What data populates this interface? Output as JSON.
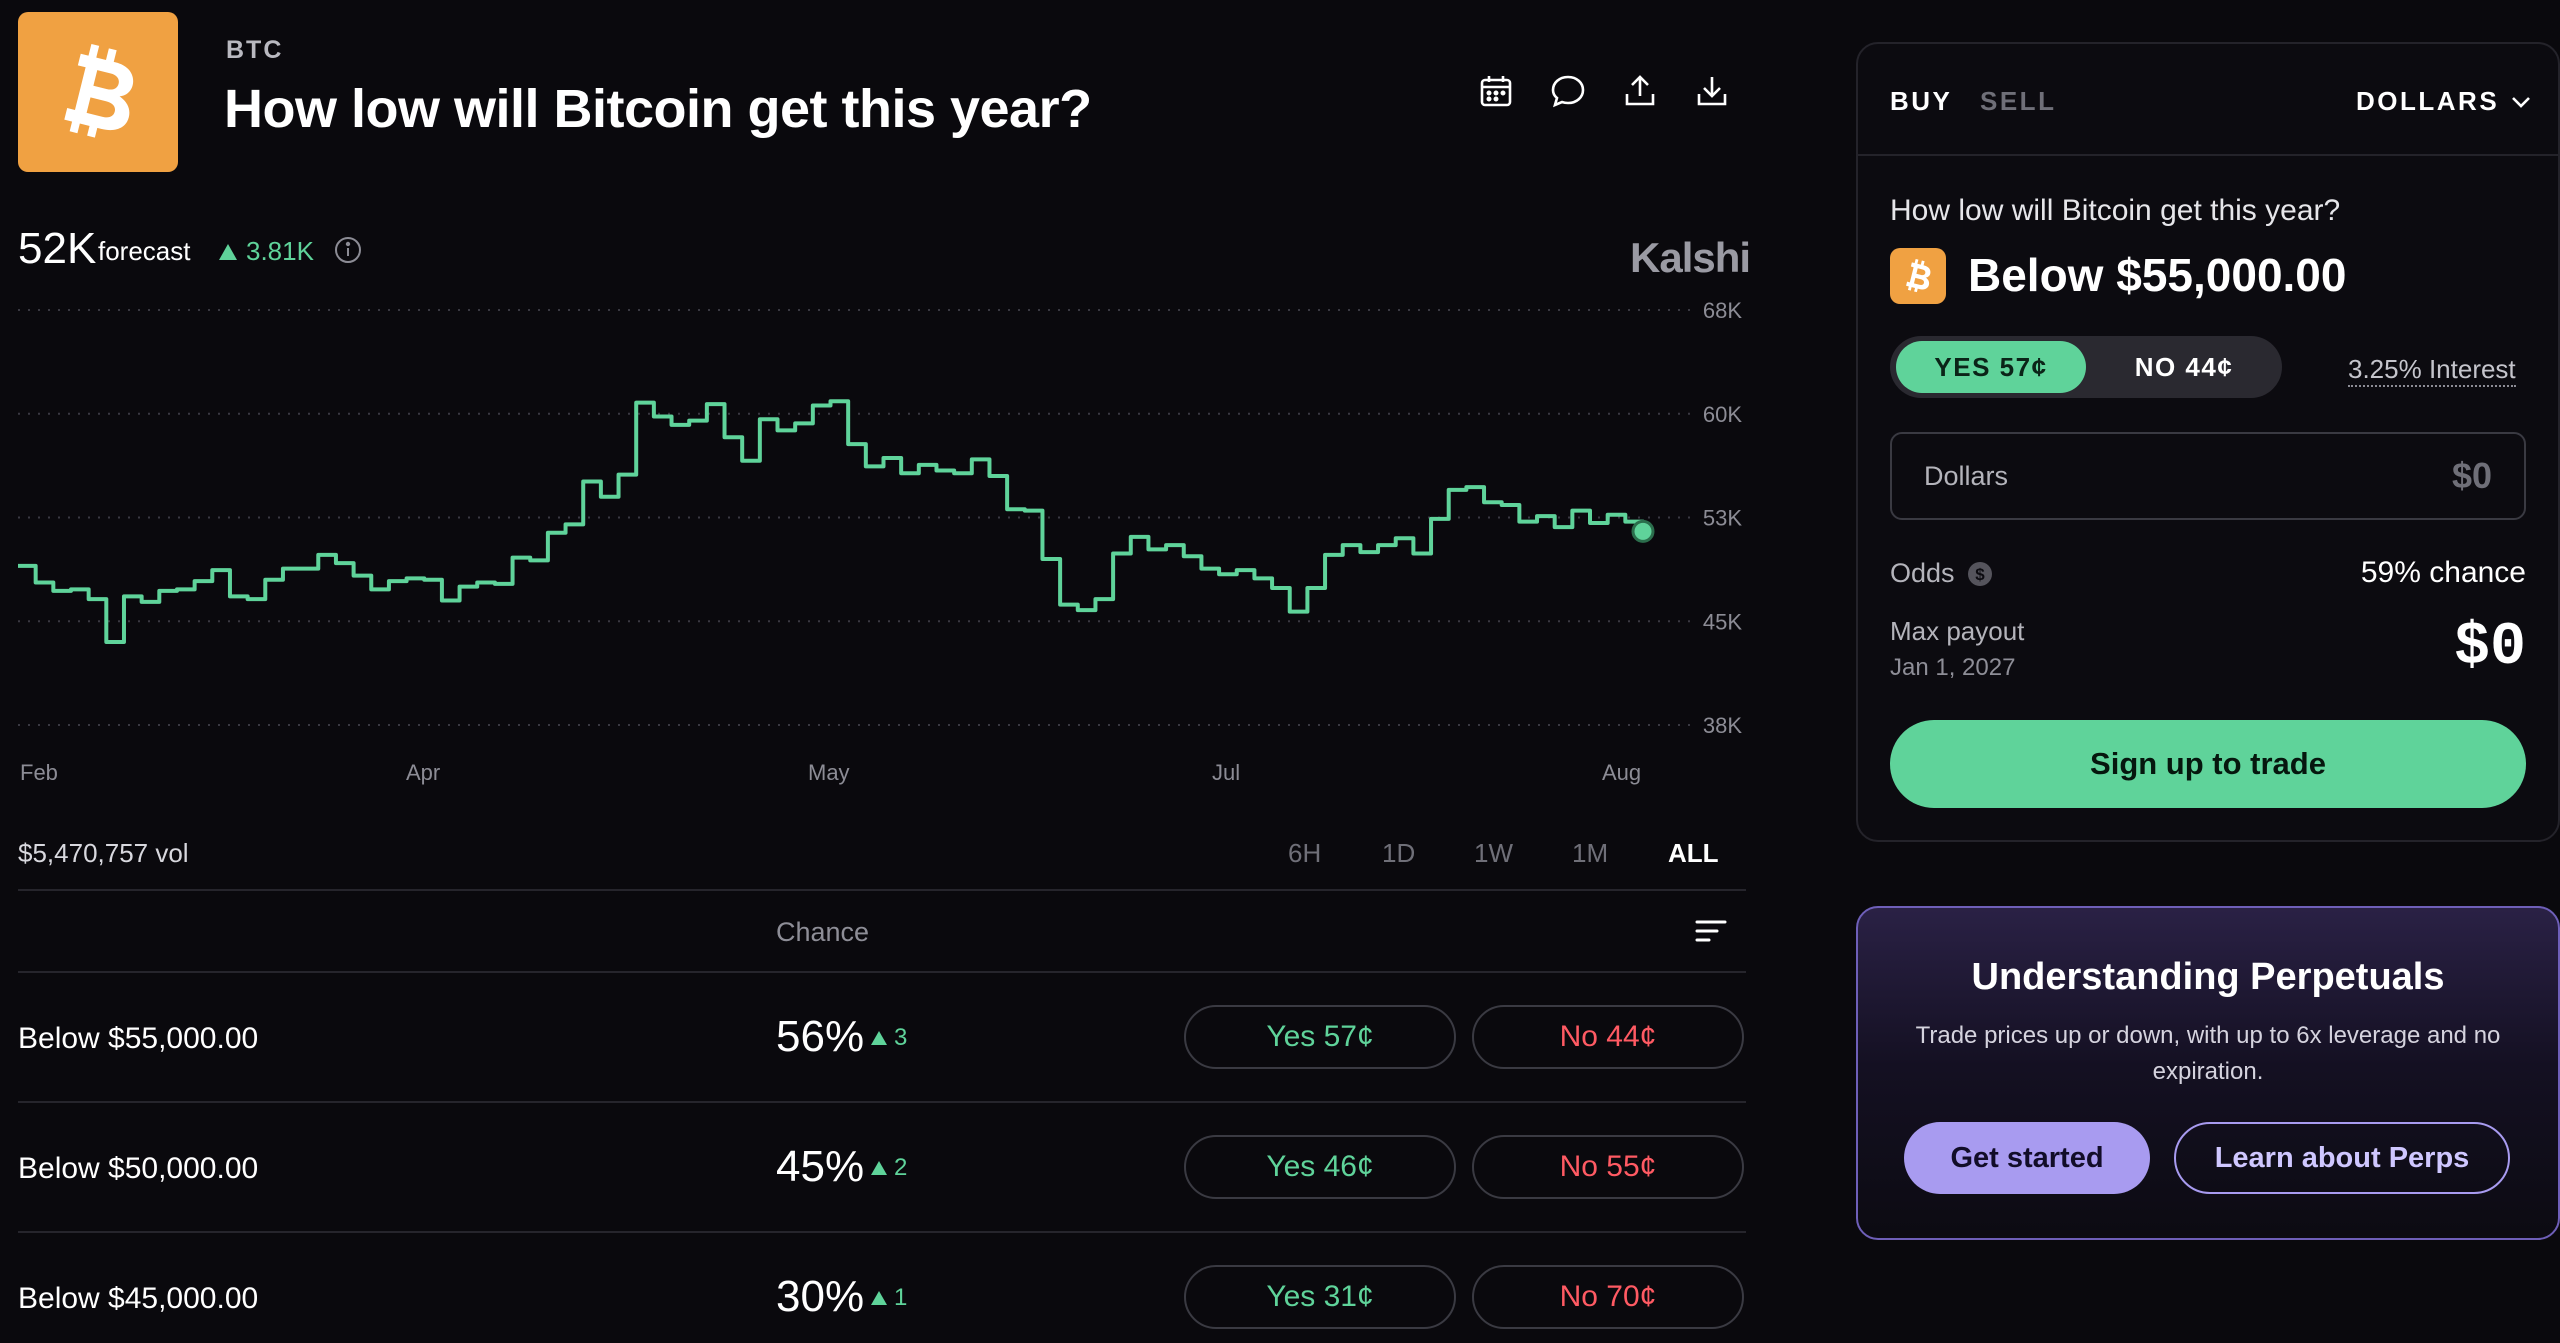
{
  "header": {
    "ticker": "BTC",
    "title": "How low will Bitcoin get this year?",
    "icons": [
      "calendar-icon",
      "comment-icon",
      "share-icon",
      "download-icon"
    ]
  },
  "forecast": {
    "value": "52K",
    "label": "forecast",
    "delta": "3.81K",
    "brand": "Kalshi"
  },
  "chart_data": {
    "type": "line",
    "x_labels": [
      "Feb",
      "Apr",
      "May",
      "Jul",
      "Aug"
    ],
    "y_ticks": [
      "68K",
      "60K",
      "53K",
      "45K",
      "38K"
    ],
    "ylim": [
      38000,
      68000
    ],
    "grid": true,
    "series": [
      {
        "color": "#5fd39a",
        "values": [
          49500,
          48300,
          47700,
          47800,
          47100,
          44000,
          47300,
          46900,
          47700,
          47800,
          48400,
          49200,
          47300,
          47100,
          48500,
          49300,
          49300,
          50300,
          49700,
          48800,
          47800,
          48400,
          48600,
          48500,
          47000,
          48000,
          48300,
          48200,
          50100,
          49900,
          51900,
          52500,
          55600,
          54500,
          56100,
          61300,
          60300,
          59700,
          60000,
          61200,
          58800,
          57100,
          60100,
          59300,
          59800,
          61100,
          61400,
          58300,
          56700,
          57300,
          56200,
          56800,
          56400,
          56200,
          57200,
          56000,
          53600,
          53500,
          50000,
          46700,
          46300,
          47100,
          50400,
          51600,
          50700,
          51000,
          50200,
          49300,
          48900,
          49200,
          48600,
          47900,
          46200,
          47900,
          50300,
          51000,
          50500,
          51000,
          51500,
          50400,
          52900,
          55000,
          55200,
          54100,
          53900,
          52700,
          53100,
          52300,
          53500,
          52600,
          53200,
          52700,
          52000
        ]
      }
    ]
  },
  "volume": "$5,470,757 vol",
  "ranges": [
    {
      "label": "6H",
      "active": false
    },
    {
      "label": "1D",
      "active": false
    },
    {
      "label": "1W",
      "active": false
    },
    {
      "label": "1M",
      "active": false
    },
    {
      "label": "ALL",
      "active": true
    }
  ],
  "table": {
    "chance_header": "Chance",
    "rows": [
      {
        "label": "Below $55,000.00",
        "chance": "56%",
        "delta": "3",
        "chance_value": 56,
        "yes": "Yes 57¢",
        "no": "No 44¢"
      },
      {
        "label": "Below $50,000.00",
        "chance": "45%",
        "delta": "2",
        "chance_value": 45,
        "yes": "Yes 46¢",
        "no": "No 55¢"
      },
      {
        "label": "Below $45,000.00",
        "chance": "30%",
        "delta": "1",
        "chance_value": 30,
        "yes": "Yes 31¢",
        "no": "No 70¢"
      }
    ]
  },
  "trade": {
    "buy_tab": "BUY",
    "sell_tab": "SELL",
    "currency": "DOLLARS",
    "question": "How low will Bitcoin get this year?",
    "outcome": "Below $55,000.00",
    "yes_label": "YES 57¢",
    "no_label": "NO 44¢",
    "interest": "3.25% Interest",
    "amount_label": "Dollars",
    "amount_value": "$0",
    "odds_label": "Odds",
    "odds_value": "59% chance",
    "payout_label": "Max payout",
    "payout_date": "Jan 1, 2027",
    "payout_value": "$0",
    "cta": "Sign up to trade"
  },
  "promo": {
    "title": "Understanding Perpetuals",
    "text": "Trade prices up or down, with up to 6x leverage and no expiration.",
    "primary": "Get started",
    "secondary": "Learn about Perps"
  },
  "colors": {
    "accent_green": "#5fd39a",
    "no_red": "#ff5a63",
    "bitcoin_orange": "#f0a142",
    "perps_purple": "#a89bf0"
  }
}
